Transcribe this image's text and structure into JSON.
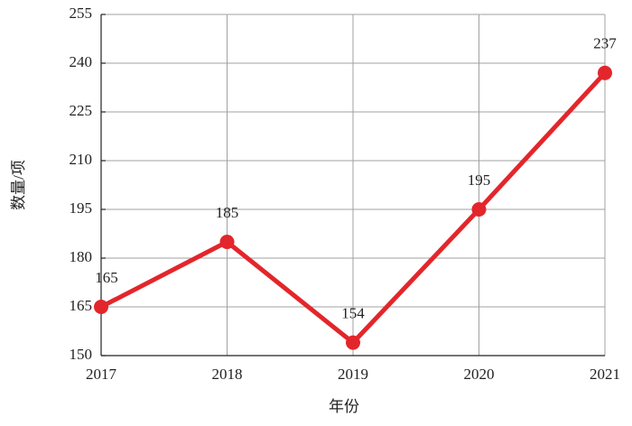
{
  "chart_data": {
    "type": "line",
    "x_label": "年份",
    "y_label": "数量/项",
    "categories": [
      "2017",
      "2018",
      "2019",
      "2020",
      "2021"
    ],
    "values": [
      165,
      185,
      154,
      195,
      237
    ],
    "color": "#e3262b",
    "ylim": [
      150,
      255
    ],
    "yticks": [
      150,
      165,
      180,
      195,
      210,
      225,
      240,
      255
    ],
    "grid": true
  }
}
